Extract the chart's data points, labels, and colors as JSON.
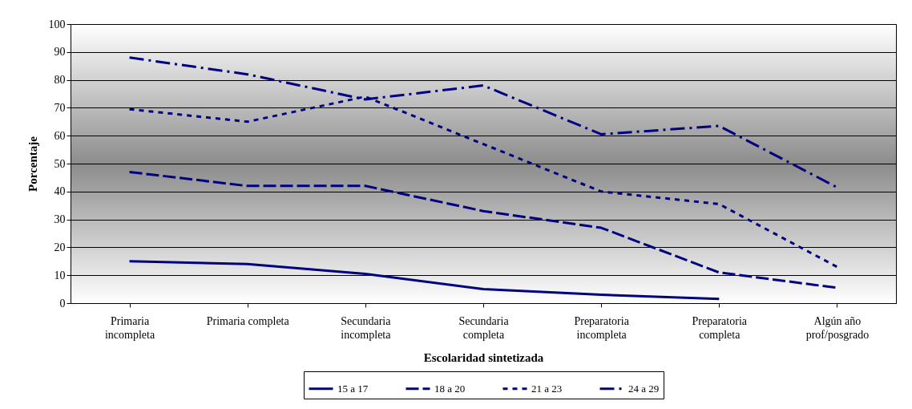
{
  "chart_data": {
    "type": "line",
    "xlabel": "Escolaridad sintetizada",
    "ylabel": "Porcentaje",
    "categories": [
      "Primaria incompleta",
      "Primaria completa",
      "Secundaria incompleta",
      "Secundaria completa",
      "Preparatoria incompleta",
      "Preparatoria completa",
      "Algún año prof/posgrado"
    ],
    "ylim": [
      0,
      100
    ],
    "yticks": [
      0,
      10,
      20,
      30,
      40,
      50,
      60,
      70,
      80,
      90,
      100
    ],
    "grid": "y",
    "legend": "bottom",
    "marker": "none",
    "series": [
      {
        "name": "15 a 17",
        "color": "#000080",
        "line_style": "solid",
        "values": [
          15,
          14,
          10.5,
          5,
          3,
          1.5,
          null
        ]
      },
      {
        "name": "18 a 20",
        "color": "#000080",
        "line_style": "dashed",
        "values": [
          47,
          42,
          42,
          33,
          27,
          11,
          5.5
        ]
      },
      {
        "name": "21 a 23",
        "color": "#000080",
        "line_style": "dotted",
        "values": [
          69.5,
          65,
          74,
          57,
          40,
          35.5,
          13
        ]
      },
      {
        "name": "24 a 29",
        "color": "#000080",
        "line_style": "dashdot",
        "values": [
          88,
          82,
          73,
          78,
          60.5,
          63.5,
          41.5
        ]
      }
    ]
  }
}
